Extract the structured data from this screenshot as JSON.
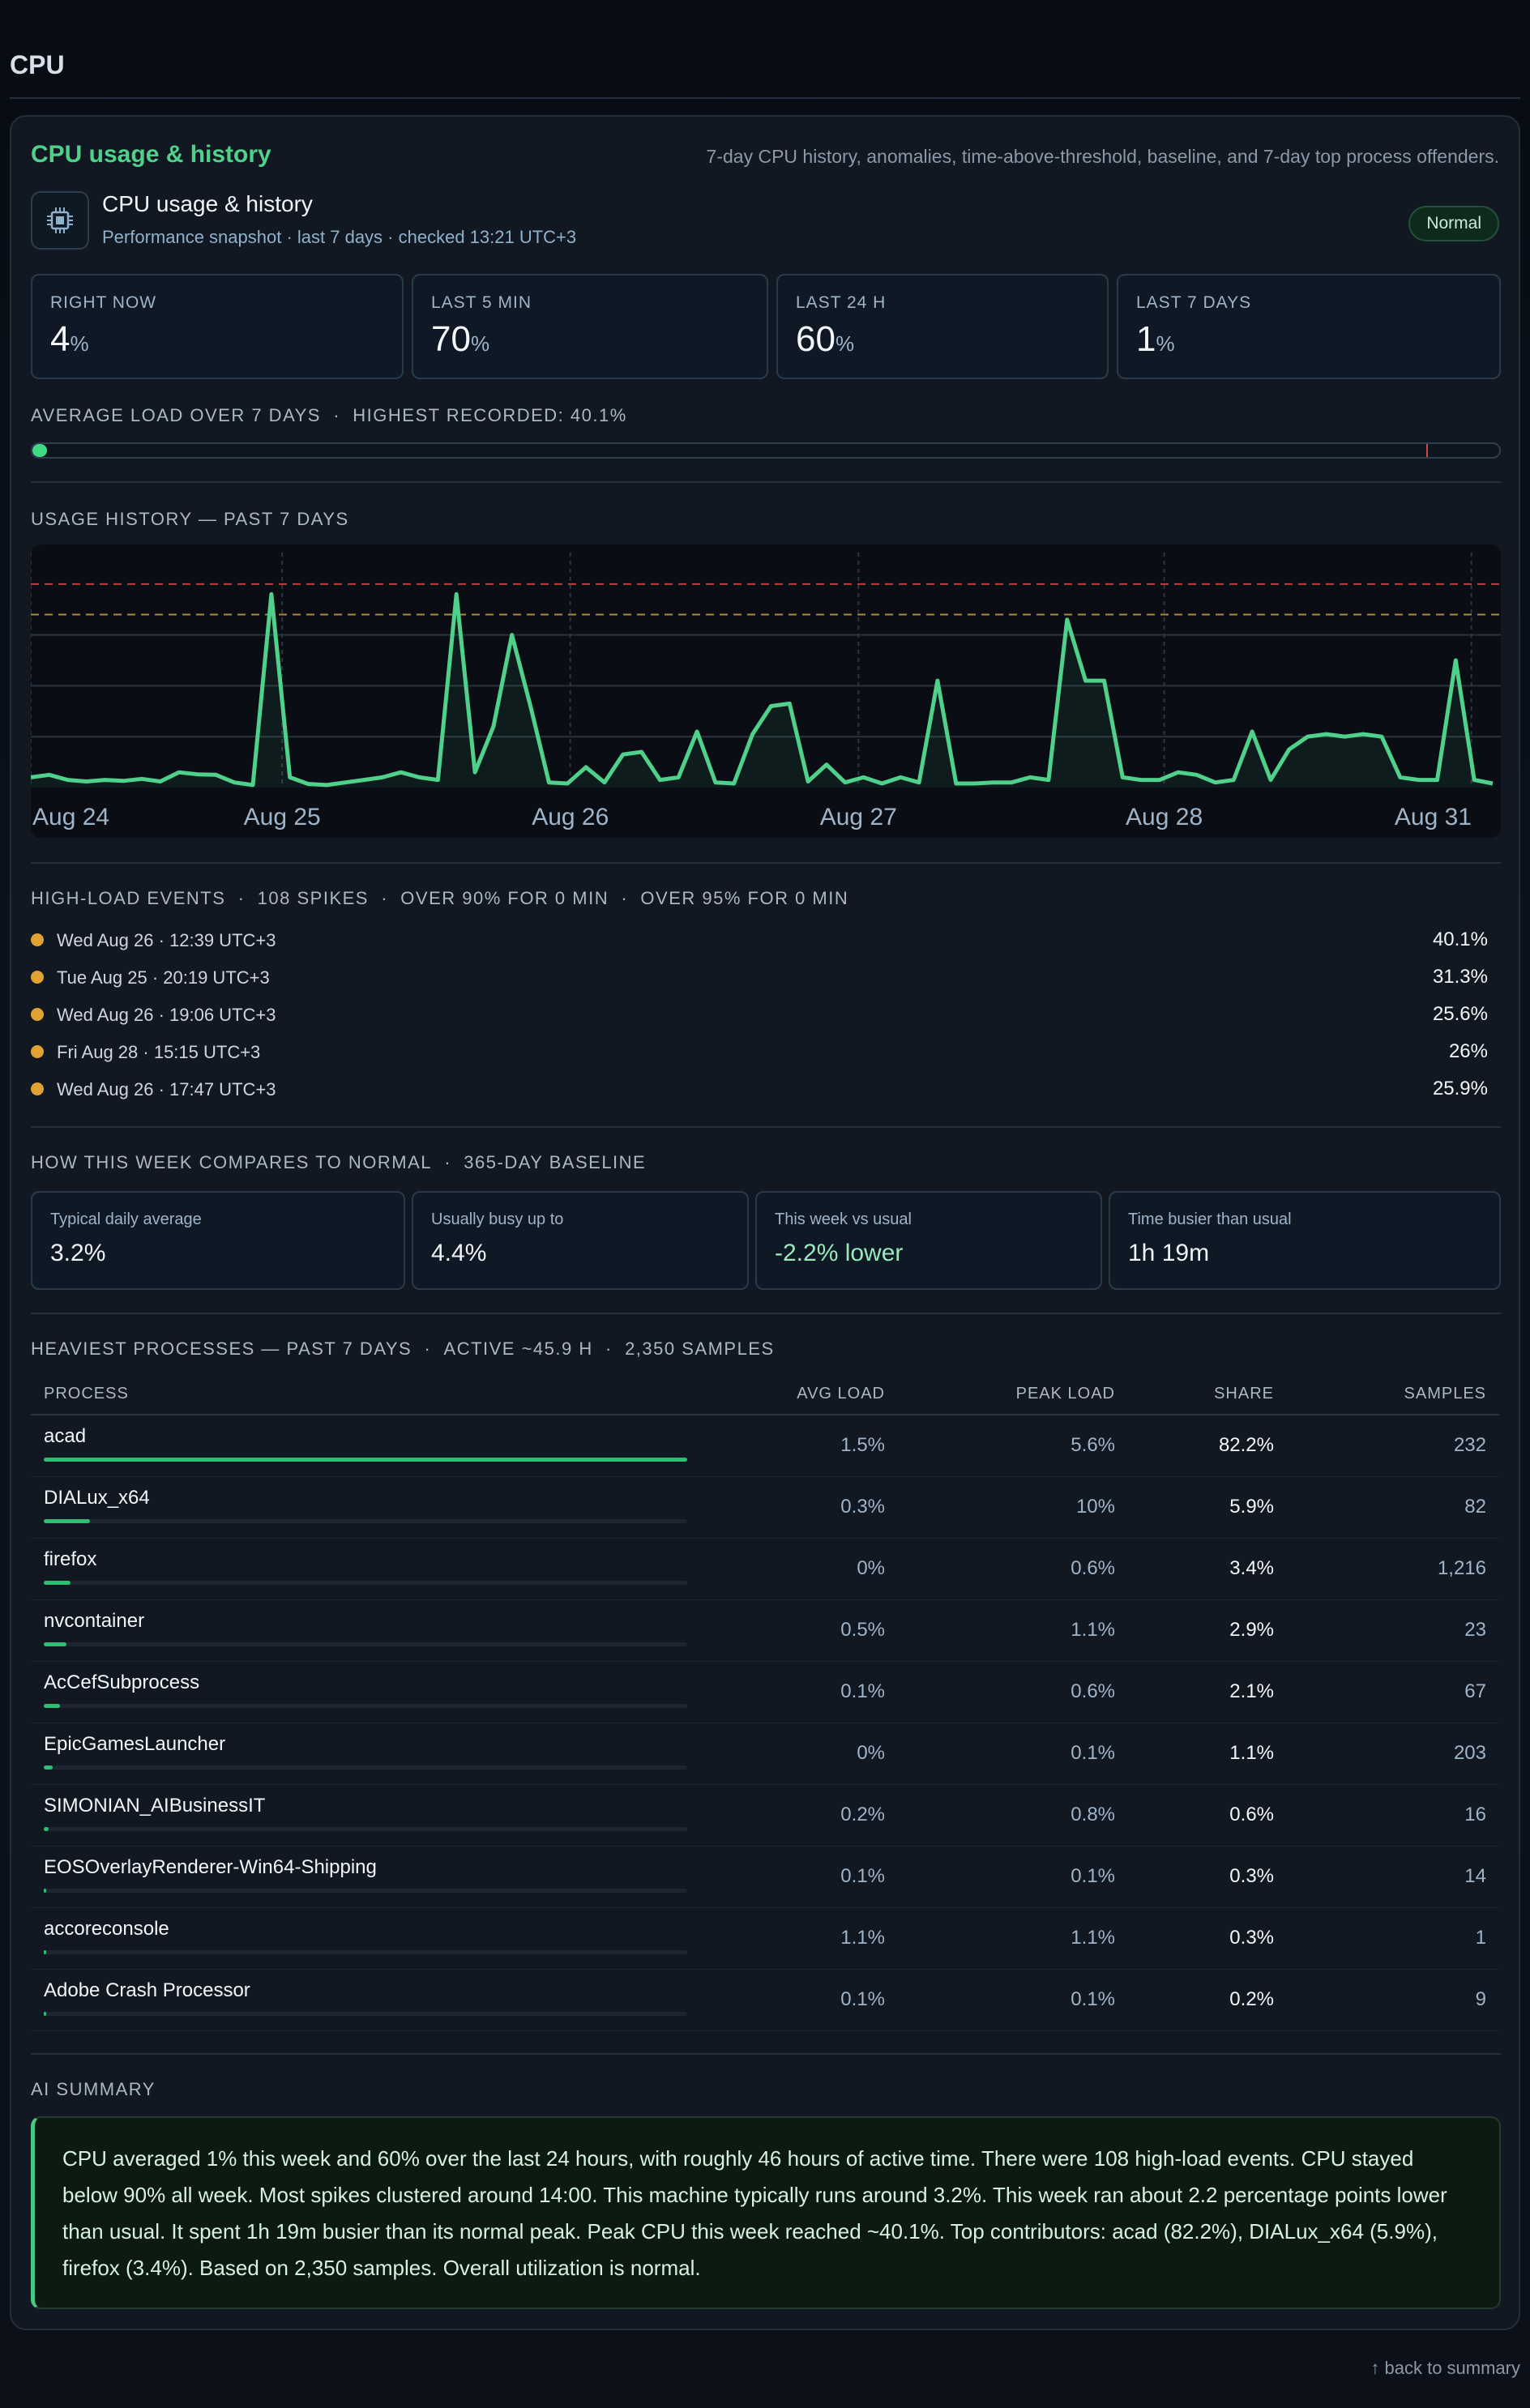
{
  "page": {
    "title": "CPU",
    "back_link": "↑ back to summary"
  },
  "card": {
    "title": "CPU usage & history",
    "description": "7-day CPU history, anomalies, time-above-threshold, baseline, and 7-day top process offenders.",
    "header": {
      "icon": "cpu-chip-icon",
      "name": "CPU usage & history",
      "subtitle": "Performance snapshot · last 7 days · checked 13:21 UTC+3",
      "status": "Normal"
    },
    "stats": [
      {
        "label": "RIGHT NOW",
        "value": "4",
        "unit": "%"
      },
      {
        "label": "LAST 5 MIN",
        "value": "70",
        "unit": "%"
      },
      {
        "label": "LAST 24 H",
        "value": "60",
        "unit": "%"
      },
      {
        "label": "LAST 7 DAYS",
        "value": "1",
        "unit": "%"
      }
    ],
    "avg_load": {
      "label": "AVERAGE LOAD OVER 7 DAYS",
      "sep": "·",
      "highest_label": "HIGHEST RECORDED: 40.1%",
      "average_fraction": 0.01,
      "highest_fraction": 0.401
    }
  },
  "history": {
    "title": "USAGE HISTORY — PAST 7 DAYS",
    "x_ticks": [
      "Aug 24",
      "Aug 25",
      "Aug 26",
      "Aug 27",
      "Aug 28",
      "Aug 31"
    ]
  },
  "events": {
    "title": "HIGH-LOAD EVENTS",
    "spikes": "108 SPIKES",
    "over90": "OVER 90% FOR 0 MIN",
    "over95": "OVER 95% FOR 0 MIN",
    "sep": "·",
    "items": [
      {
        "time": "Wed Aug 26 · 12:39 UTC+3",
        "value": "40.1%"
      },
      {
        "time": "Tue Aug 25 · 20:19 UTC+3",
        "value": "31.3%"
      },
      {
        "time": "Wed Aug 26 · 19:06 UTC+3",
        "value": "25.6%"
      },
      {
        "time": "Fri Aug 28 · 15:15 UTC+3",
        "value": "26%"
      },
      {
        "time": "Wed Aug 26 · 17:47 UTC+3",
        "value": "25.9%"
      }
    ]
  },
  "baseline": {
    "title": "HOW THIS WEEK COMPARES TO NORMAL",
    "sep": "·",
    "sub": "365-DAY BASELINE",
    "cards": [
      {
        "label": "Typical daily average",
        "value": "3.2%"
      },
      {
        "label": "Usually busy up to",
        "value": "4.4%"
      },
      {
        "label": "This week vs usual",
        "value": "-2.2% lower"
      },
      {
        "label": "Time busier than usual",
        "value": "1h 19m"
      }
    ]
  },
  "processes": {
    "title": "HEAVIEST PROCESSES — PAST 7 DAYS",
    "sep": "·",
    "active": "ACTIVE ~45.9 H",
    "samples": "2,350 SAMPLES",
    "columns": [
      "PROCESS",
      "AVG LOAD",
      "PEAK LOAD",
      "SHARE",
      "SAMPLES"
    ],
    "rows": [
      {
        "name": "acad",
        "avg": "1.5%",
        "peak": "5.6%",
        "share": "82.2%",
        "samples": "232",
        "share_fraction": 0.822
      },
      {
        "name": "DIALux_x64",
        "avg": "0.3%",
        "peak": "10%",
        "share": "5.9%",
        "samples": "82",
        "share_fraction": 0.059
      },
      {
        "name": "firefox",
        "avg": "0%",
        "peak": "0.6%",
        "share": "3.4%",
        "samples": "1,216",
        "share_fraction": 0.034
      },
      {
        "name": "nvcontainer",
        "avg": "0.5%",
        "peak": "1.1%",
        "share": "2.9%",
        "samples": "23",
        "share_fraction": 0.029
      },
      {
        "name": "AcCefSubprocess",
        "avg": "0.1%",
        "peak": "0.6%",
        "share": "2.1%",
        "samples": "67",
        "share_fraction": 0.021
      },
      {
        "name": "EpicGamesLauncher",
        "avg": "0%",
        "peak": "0.1%",
        "share": "1.1%",
        "samples": "203",
        "share_fraction": 0.011
      },
      {
        "name": "SIMONIAN_AIBusinessIT",
        "avg": "0.2%",
        "peak": "0.8%",
        "share": "0.6%",
        "samples": "16",
        "share_fraction": 0.006
      },
      {
        "name": "EOSOverlayRenderer-Win64-Shipping",
        "avg": "0.1%",
        "peak": "0.1%",
        "share": "0.3%",
        "samples": "14",
        "share_fraction": 0.003
      },
      {
        "name": "accoreconsole",
        "avg": "1.1%",
        "peak": "1.1%",
        "share": "0.3%",
        "samples": "1",
        "share_fraction": 0.003
      },
      {
        "name": "Adobe Crash Processor",
        "avg": "0.1%",
        "peak": "0.1%",
        "share": "0.2%",
        "samples": "9",
        "share_fraction": 0.002
      }
    ]
  },
  "summary": {
    "title": "AI SUMMARY",
    "text": "CPU averaged 1% this week and 60% over the last 24 hours, with roughly 46 hours of active time. There were 108 high-load events. CPU stayed below 90% all week. Most spikes clustered around 14:00. This machine typically runs around 3.2%. This week ran about 2.2 percentage points lower than usual. It spent 1h 19m busier than its normal peak. Peak CPU this week reached ~40.1%. Top contributors: acad (82.2%), DIALux_x64 (5.9%), firefox (3.4%). Based on 2,350 samples. Overall utilization is normal."
  },
  "colors": {
    "accent": "#4fd18b",
    "line": "#4fd18b",
    "warning": "#e0a233",
    "danger": "#d84a4a",
    "threshold_warn": "#c8a13a"
  },
  "chart_data": {
    "type": "line",
    "title": "USAGE HISTORY — PAST 7 DAYS",
    "xlabel": "",
    "ylabel": "",
    "x_ticks": [
      "Aug 24",
      "Aug 25",
      "Aug 26",
      "Aug 27",
      "Aug 28",
      "Aug 31"
    ],
    "ylim": [
      0,
      43
    ],
    "grid": true,
    "legend": "none",
    "thresholds": [
      40,
      34
    ],
    "series": [
      {
        "values": [
          2,
          2.5,
          1.5,
          1.2,
          1.5,
          1.3,
          1.7,
          1.2,
          3,
          2.6,
          2.5,
          1,
          0.5,
          38,
          2,
          0.7,
          0.5,
          1,
          1.5,
          2,
          3,
          2,
          1.5,
          38,
          3,
          12,
          30,
          16,
          1,
          0.8,
          4,
          1,
          6.5,
          7,
          1.5,
          2,
          11,
          1,
          0.8,
          10.5,
          16,
          16.5,
          1.2,
          4.5,
          1,
          2,
          0.8,
          2,
          1,
          21,
          0.8,
          0.8,
          1,
          1,
          2,
          1.5,
          33,
          21,
          21,
          2,
          1.5,
          1.5,
          3,
          2.5,
          1,
          1.5,
          11,
          1.5,
          7.5,
          10,
          10.5,
          10,
          10.5,
          10,
          2,
          1.5,
          1.5,
          25,
          1.5,
          0.8
        ]
      }
    ]
  }
}
